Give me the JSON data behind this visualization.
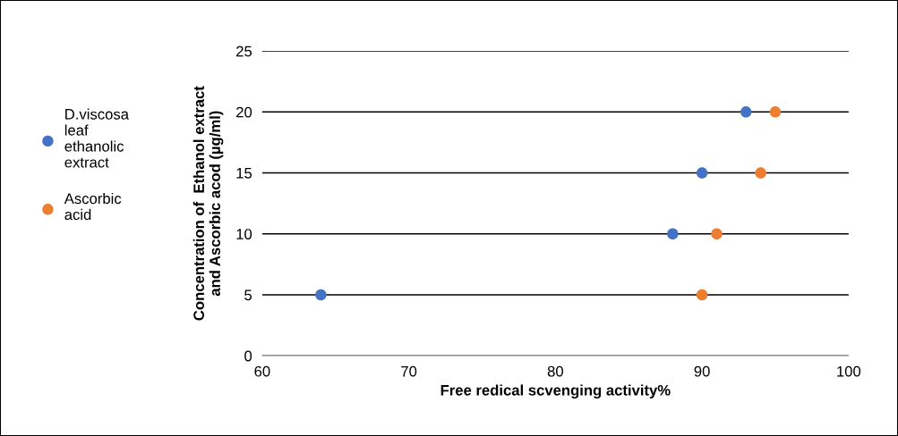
{
  "chart_data": {
    "type": "scatter",
    "xlabel": "Free redical scvenging activity%",
    "ylabel": "Concentration of  Ethanol extract\nand Ascorbic acod (µg/ml)",
    "series": [
      {
        "name": "D.viscosa\nleaf\nethanolic\nextract",
        "color": "#4472c4",
        "x": [
          64,
          88,
          90,
          93
        ],
        "values": [
          5,
          10,
          15,
          20
        ]
      },
      {
        "name": "Ascorbic\nacid",
        "color": "#ed7d31",
        "x": [
          90,
          91,
          94,
          95
        ],
        "values": [
          5,
          10,
          15,
          20
        ]
      }
    ],
    "xlim": [
      60,
      100
    ],
    "xticks": [
      60,
      70,
      80,
      90,
      100
    ],
    "ylim": [
      0,
      25
    ],
    "yticks": [
      0,
      5,
      10,
      15,
      20,
      25
    ],
    "grid": "y",
    "legend": "left",
    "marker": "circle"
  }
}
